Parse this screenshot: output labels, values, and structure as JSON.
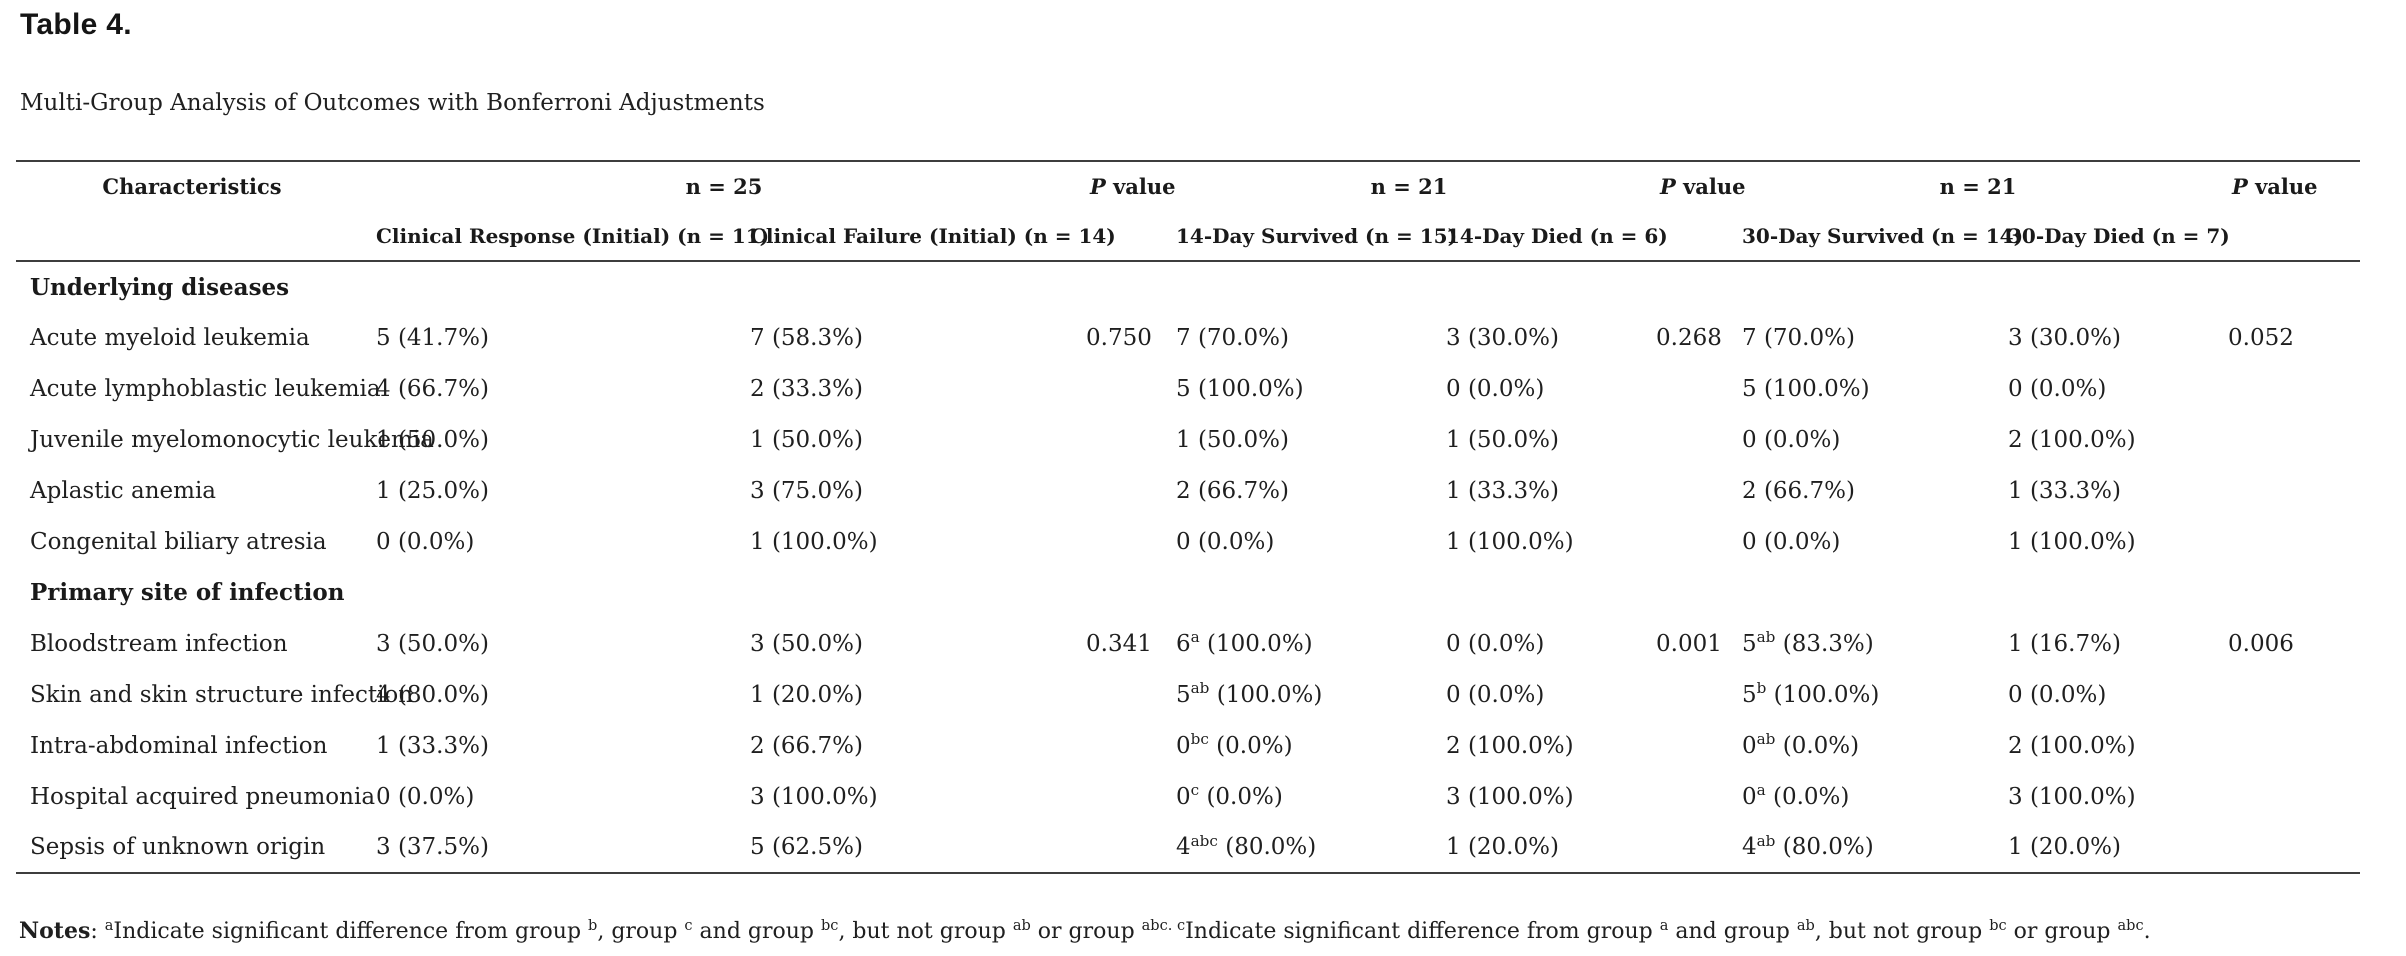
{
  "page": {
    "title": "Table 4.",
    "caption": "Multi-Group Analysis of Outcomes with Bonferroni Adjustments"
  },
  "table": {
    "header": {
      "characteristics": "Characteristics",
      "group_counts": [
        "n = 25",
        "n = 21",
        "n = 21"
      ],
      "p_italic": "P",
      "p_rest": " value",
      "subheaders": [
        "Clinical Response (Initial) (n = 11)",
        "Clinical Failure (Initial) (n = 14)",
        "14-Day Survived (n = 15)",
        "14-Day Died (n = 6)",
        "30-Day Survived (n = 14)",
        "30-Day Died (n = 7)"
      ]
    },
    "sections": [
      {
        "title": "Underlying diseases",
        "rows": [
          {
            "label": "Acute myeloid leukemia",
            "cells": [
              "5 (41.7%)",
              "7 (58.3%)",
              "0.750",
              "7 (70.0%)",
              "3 (30.0%)",
              "0.268",
              "7 (70.0%)",
              "3 (30.0%)",
              "0.052"
            ]
          },
          {
            "label": "Acute lymphoblastic leukemia",
            "cells": [
              "4 (66.7%)",
              "2 (33.3%)",
              "",
              "5 (100.0%)",
              "0 (0.0%)",
              "",
              "5 (100.0%)",
              "0 (0.0%)",
              ""
            ]
          },
          {
            "label": "Juvenile myelomonocytic leukemia",
            "cells": [
              "1 (50.0%)",
              "1 (50.0%)",
              "",
              "1 (50.0%)",
              "1 (50.0%)",
              "",
              "0 (0.0%)",
              "2 (100.0%)",
              ""
            ]
          },
          {
            "label": "Aplastic anemia",
            "cells": [
              "1 (25.0%)",
              "3 (75.0%)",
              "",
              "2 (66.7%)",
              "1 (33.3%)",
              "",
              "2 (66.7%)",
              "1 (33.3%)",
              ""
            ]
          },
          {
            "label": "Congenital biliary atresia",
            "cells": [
              "0 (0.0%)",
              "1 (100.0%)",
              "",
              "0 (0.0%)",
              "1 (100.0%)",
              "",
              "0 (0.0%)",
              "1 (100.0%)",
              ""
            ]
          }
        ]
      },
      {
        "title": "Primary site of infection",
        "rows": [
          {
            "label": "Bloodstream infection",
            "cells": [
              "3 (50.0%)",
              "3 (50.0%)",
              "0.341",
              "6[a] (100.0%)",
              "0 (0.0%)",
              "0.001",
              "5[ab] (83.3%)",
              "1 (16.7%)",
              "0.006"
            ]
          },
          {
            "label": "Skin and skin structure infection",
            "cells": [
              "4 (80.0%)",
              "1 (20.0%)",
              "",
              "5[ab] (100.0%)",
              "0 (0.0%)",
              "",
              "5[b] (100.0%)",
              "0 (0.0%)",
              ""
            ]
          },
          {
            "label": "Intra-abdominal infection",
            "cells": [
              "1 (33.3%)",
              "2 (66.7%)",
              "",
              "0[bc] (0.0%)",
              "2 (100.0%)",
              "",
              "0[ab] (0.0%)",
              "2 (100.0%)",
              ""
            ]
          },
          {
            "label": "Hospital acquired pneumonia",
            "cells": [
              "0 (0.0%)",
              "3 (100.0%)",
              "",
              "0[c] (0.0%)",
              "3 (100.0%)",
              "",
              "0[a] (0.0%)",
              "3 (100.0%)",
              ""
            ]
          },
          {
            "label": "Sepsis of unknown origin",
            "cells": [
              "3 (37.5%)",
              "5 (62.5%)",
              "",
              "4[abc] (80.0%)",
              "1 (20.0%)",
              "",
              "4[ab] (80.0%)",
              "1 (20.0%)",
              ""
            ]
          }
        ]
      }
    ]
  },
  "notes": {
    "label": "Notes",
    "body": ": [a]Indicate significant difference from group [b], group [c] and group [bc], but not group [ab] or group [abc. c]Indicate significant difference from group [a] and group [ab], but not group [bc] or group [abc]."
  }
}
